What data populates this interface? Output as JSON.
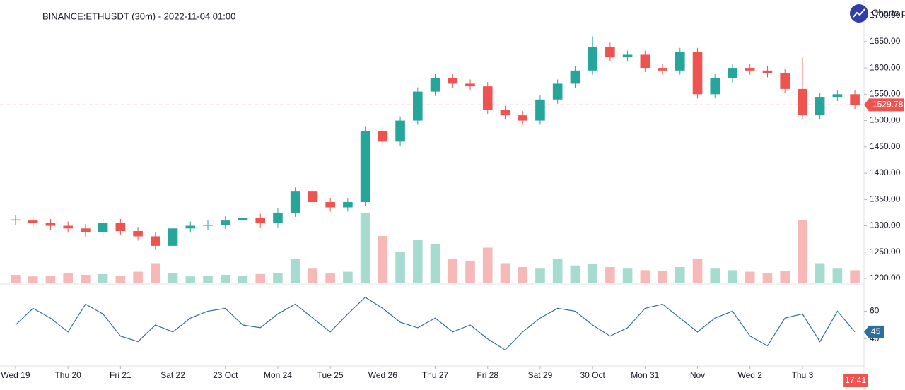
{
  "chart_data": {
    "type": "candlestick",
    "title": "BINANCE:ETHUSDT (30m) - 2022-11-04 01:00",
    "brand": "Charts p",
    "up_color": "#26a69a",
    "down_color": "#ef5350",
    "volume_up_color": "#a5dccf",
    "volume_down_color": "#f7b9b8",
    "open": [
      1312,
      1310,
      1305,
      1300,
      1295,
      1288,
      1305,
      1290,
      1280,
      1262,
      1295,
      1300,
      1302,
      1310,
      1315,
      1305,
      1325,
      1365,
      1345,
      1335,
      1345,
      1480,
      1460,
      1500,
      1555,
      1580,
      1570,
      1565,
      1520,
      1510,
      1500,
      1540,
      1570,
      1595,
      1640,
      1620,
      1625,
      1600,
      1595,
      1630,
      1550,
      1580,
      1600,
      1595,
      1590,
      1560,
      1510,
      1545,
      1550
    ],
    "high": [
      1320,
      1318,
      1313,
      1308,
      1303,
      1313,
      1313,
      1298,
      1288,
      1303,
      1308,
      1310,
      1318,
      1323,
      1323,
      1333,
      1373,
      1373,
      1353,
      1353,
      1488,
      1488,
      1508,
      1563,
      1588,
      1588,
      1578,
      1573,
      1528,
      1518,
      1548,
      1578,
      1603,
      1660,
      1648,
      1633,
      1633,
      1608,
      1638,
      1638,
      1588,
      1608,
      1608,
      1603,
      1598,
      1620,
      1553,
      1558,
      1558
    ],
    "low": [
      1302,
      1297,
      1292,
      1287,
      1280,
      1280,
      1282,
      1272,
      1254,
      1254,
      1287,
      1292,
      1294,
      1302,
      1297,
      1297,
      1317,
      1337,
      1327,
      1327,
      1337,
      1452,
      1452,
      1492,
      1547,
      1562,
      1557,
      1512,
      1502,
      1492,
      1492,
      1532,
      1562,
      1587,
      1612,
      1612,
      1592,
      1587,
      1587,
      1542,
      1542,
      1572,
      1587,
      1582,
      1552,
      1502,
      1502,
      1537,
      1522
    ],
    "close": [
      1310,
      1305,
      1300,
      1295,
      1288,
      1305,
      1290,
      1280,
      1262,
      1295,
      1300,
      1302,
      1310,
      1315,
      1305,
      1325,
      1365,
      1345,
      1335,
      1345,
      1480,
      1460,
      1500,
      1555,
      1580,
      1570,
      1565,
      1520,
      1510,
      1500,
      1540,
      1570,
      1595,
      1640,
      1620,
      1625,
      1600,
      1595,
      1630,
      1550,
      1580,
      1600,
      1595,
      1590,
      1560,
      1510,
      1545,
      1550,
      1530
    ],
    "volume": [
      10,
      8,
      9,
      12,
      10,
      11,
      9,
      14,
      25,
      12,
      8,
      9,
      10,
      9,
      11,
      12,
      30,
      18,
      12,
      14,
      90,
      60,
      40,
      55,
      50,
      30,
      28,
      45,
      25,
      20,
      18,
      30,
      22,
      24,
      20,
      18,
      16,
      15,
      20,
      30,
      18,
      16,
      14,
      12,
      15,
      80,
      25,
      18,
      16
    ],
    "vlim": [
      0,
      100
    ],
    "xlim": [
      -0.16,
      48.44
    ],
    "xticks": [
      {
        "value": 0,
        "label": "Wed 19"
      },
      {
        "value": 3,
        "label": "Thu 20"
      },
      {
        "value": 6,
        "label": "Fri 21"
      },
      {
        "value": 9,
        "label": "Sat 22"
      },
      {
        "value": 12,
        "label": "23 Oct"
      },
      {
        "value": 15,
        "label": "Mon 24"
      },
      {
        "value": 18,
        "label": "Tue 25"
      },
      {
        "value": 21,
        "label": "Wed 26"
      },
      {
        "value": 24,
        "label": "Thu 27"
      },
      {
        "value": 27,
        "label": "Fri 28"
      },
      {
        "value": 30,
        "label": "Sat 29"
      },
      {
        "value": 33,
        "label": "30 Oct"
      },
      {
        "value": 36,
        "label": "Mon 31"
      },
      {
        "value": 39,
        "label": "Nov"
      },
      {
        "value": 42,
        "label": "Wed 2"
      },
      {
        "value": 45,
        "label": "Thu 3"
      }
    ],
    "ylim": [
      1192,
      1729
    ],
    "yticks": [
      {
        "value": 1200,
        "label": "1200.00"
      },
      {
        "value": 1250,
        "label": "1250.00"
      },
      {
        "value": 1300,
        "label": "1300.00"
      },
      {
        "value": 1350,
        "label": "1350.00"
      },
      {
        "value": 1400,
        "label": "1400.00"
      },
      {
        "value": 1450,
        "label": "1450.00"
      },
      {
        "value": 1500,
        "label": "1500.00"
      },
      {
        "value": 1550,
        "label": "1550.00"
      },
      {
        "value": 1600,
        "label": "1600.00"
      },
      {
        "value": 1650,
        "label": "1650.00"
      },
      {
        "value": 1700,
        "label": "1700.00"
      }
    ],
    "last_price": 1529.78,
    "countdown": "17:41",
    "indicator": {
      "type": "line",
      "color": "#2e6e9e",
      "values": [
        50,
        62,
        55,
        45,
        65,
        58,
        42,
        38,
        50,
        45,
        55,
        60,
        62,
        50,
        48,
        58,
        65,
        55,
        45,
        58,
        70,
        62,
        52,
        48,
        55,
        45,
        50,
        40,
        32,
        45,
        55,
        62,
        60,
        50,
        42,
        48,
        62,
        65,
        55,
        45,
        55,
        60,
        42,
        35,
        55,
        58,
        38,
        60,
        45
      ],
      "ylim": [
        22,
        78
      ],
      "yticks": [
        60,
        40
      ]
    }
  }
}
